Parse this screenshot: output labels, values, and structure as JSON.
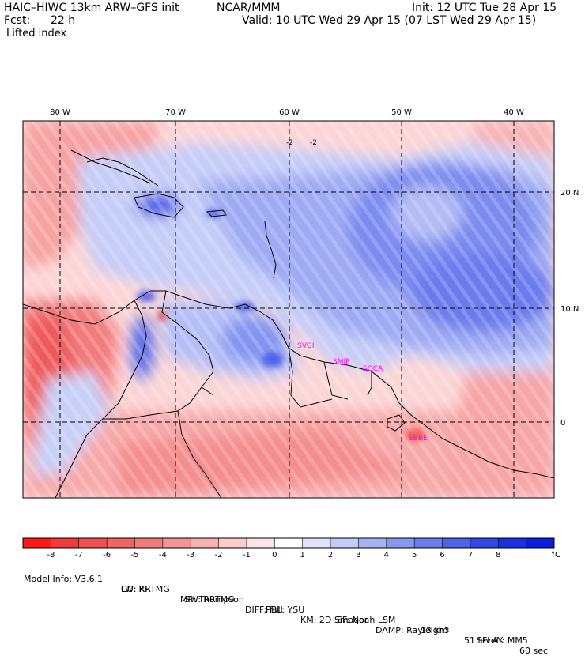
{
  "header": {
    "model": "HAIC–HIWC 13km ARW–GFS init",
    "center": "NCAR/MMM",
    "init": "Init: 12 UTC Tue 28 Apr 15",
    "fcst_label": "Fcst:",
    "fcst_value": "22 h",
    "valid": "Valid: 10 UTC Wed 29 Apr 15 (07 LST Wed 29 Apr 15)",
    "field": "Lifted index"
  },
  "map": {
    "lon_labels": [
      "80 W",
      "70 W",
      "60 W",
      "50 W",
      "40 W"
    ],
    "lat_labels": [
      "20 N",
      "10 N",
      "0"
    ],
    "contour_labels": [
      "-2",
      "-2"
    ],
    "stations": [
      "SVGI",
      "SMJP",
      "SOCA",
      "SBBE"
    ],
    "station_color": "#ff00ff"
  },
  "colorbar": {
    "ticks": [
      "-8",
      "-7",
      "-6",
      "-5",
      "-4",
      "-3",
      "-2",
      "-1",
      "0",
      "1",
      "2",
      "3",
      "4",
      "5",
      "6",
      "7",
      "8"
    ],
    "unit": "°C",
    "colors": [
      "#ff1a1a",
      "#f23a3a",
      "#f05050",
      "#f06464",
      "#f27a7a",
      "#f59494",
      "#f8b0b0",
      "#fbcccc",
      "#fde4e4",
      "#ffffff",
      "#dfe4fb",
      "#c3cbf7",
      "#a6b2f4",
      "#8897f0",
      "#6b7ded",
      "#4e63ea",
      "#3147e6",
      "#1a2ee3",
      "#0a1cdc"
    ]
  },
  "footer": {
    "line1": [
      "Model Info: V3.6.1",
      "CU: KF",
      "MP: Thompson",
      "PBL: YSU",
      "SF: Noah LSM",
      "13 km",
      "51 levels",
      "60 sec"
    ],
    "line2": [
      "LW: RRTMG",
      "SW: RRTMG",
      "DIFF: full",
      "KM: 2D Smagor",
      "DAMP: Rayleigh3",
      "SFLAY: MM5"
    ]
  }
}
